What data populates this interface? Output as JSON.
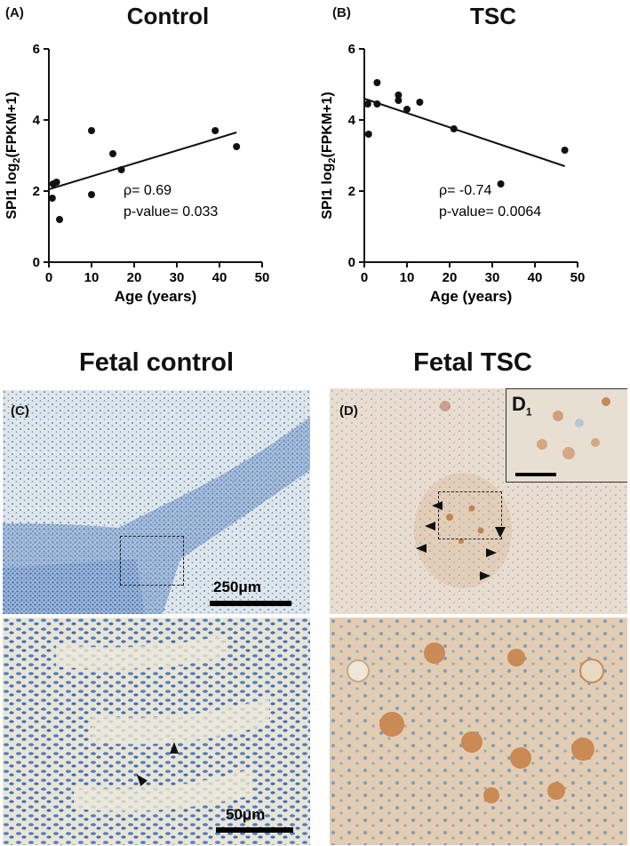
{
  "figure": {
    "panel_a_label": "(A)",
    "panel_b_label": "(B)",
    "panel_c_label": "(C)",
    "panel_d_label": "(D)",
    "section_c_title": "Fetal control",
    "section_d_title": "Fetal TSC",
    "scale_c": "250μm",
    "scale_bottom": "50μm",
    "inset_label_main": "D",
    "inset_label_sub": "1"
  },
  "chart_data": [
    {
      "type": "scatter",
      "title": "Control",
      "xlabel": "Age (years)",
      "ylabel_prefix": "SPI1 log",
      "ylabel_sub": "2",
      "ylabel_suffix": "(FPKM+1)",
      "xlim": [
        0,
        50
      ],
      "ylim": [
        0,
        6
      ],
      "xticks": [
        0,
        10,
        20,
        30,
        40,
        50
      ],
      "yticks": [
        0,
        2,
        4,
        6
      ],
      "points": [
        {
          "x": 0.8,
          "y": 1.8
        },
        {
          "x": 1.0,
          "y": 2.2
        },
        {
          "x": 1.8,
          "y": 2.25
        },
        {
          "x": 2.5,
          "y": 1.2
        },
        {
          "x": 10,
          "y": 3.7
        },
        {
          "x": 10,
          "y": 1.9
        },
        {
          "x": 15,
          "y": 3.05
        },
        {
          "x": 17,
          "y": 2.6
        },
        {
          "x": 39,
          "y": 3.7
        },
        {
          "x": 44,
          "y": 3.25
        }
      ],
      "fit_line": {
        "x": [
          0,
          44
        ],
        "y": [
          2.05,
          3.65
        ]
      },
      "annotation_rho": "ρ= 0.69",
      "annotation_p": "p-value= 0.033"
    },
    {
      "type": "scatter",
      "title": "TSC",
      "xlabel": "Age (years)",
      "ylabel_prefix": "SPI1 log",
      "ylabel_sub": "2",
      "ylabel_suffix": "(FPKM+1)",
      "xlim": [
        0,
        50
      ],
      "ylim": [
        0,
        6
      ],
      "xticks": [
        0,
        10,
        20,
        30,
        40,
        50
      ],
      "yticks": [
        0,
        2,
        4,
        6
      ],
      "points": [
        {
          "x": 0.8,
          "y": 4.45
        },
        {
          "x": 1.0,
          "y": 3.6
        },
        {
          "x": 3.0,
          "y": 5.05
        },
        {
          "x": 3.0,
          "y": 4.45
        },
        {
          "x": 8.0,
          "y": 4.7
        },
        {
          "x": 8.0,
          "y": 4.55
        },
        {
          "x": 10,
          "y": 4.3
        },
        {
          "x": 13,
          "y": 4.5
        },
        {
          "x": 21,
          "y": 3.75
        },
        {
          "x": 32,
          "y": 2.2
        },
        {
          "x": 47,
          "y": 3.15
        }
      ],
      "fit_line": {
        "x": [
          0,
          47
        ],
        "y": [
          4.6,
          2.7
        ]
      },
      "annotation_rho": "ρ= -0.74",
      "annotation_p": "p-value= 0.0064"
    }
  ],
  "colors": {
    "control_tissue_bg": "#d9e3ea",
    "control_nuclei": "#4a78b8",
    "tsc_tissue_bg": "#e8dccf",
    "tsc_stain": "#c98a55"
  }
}
